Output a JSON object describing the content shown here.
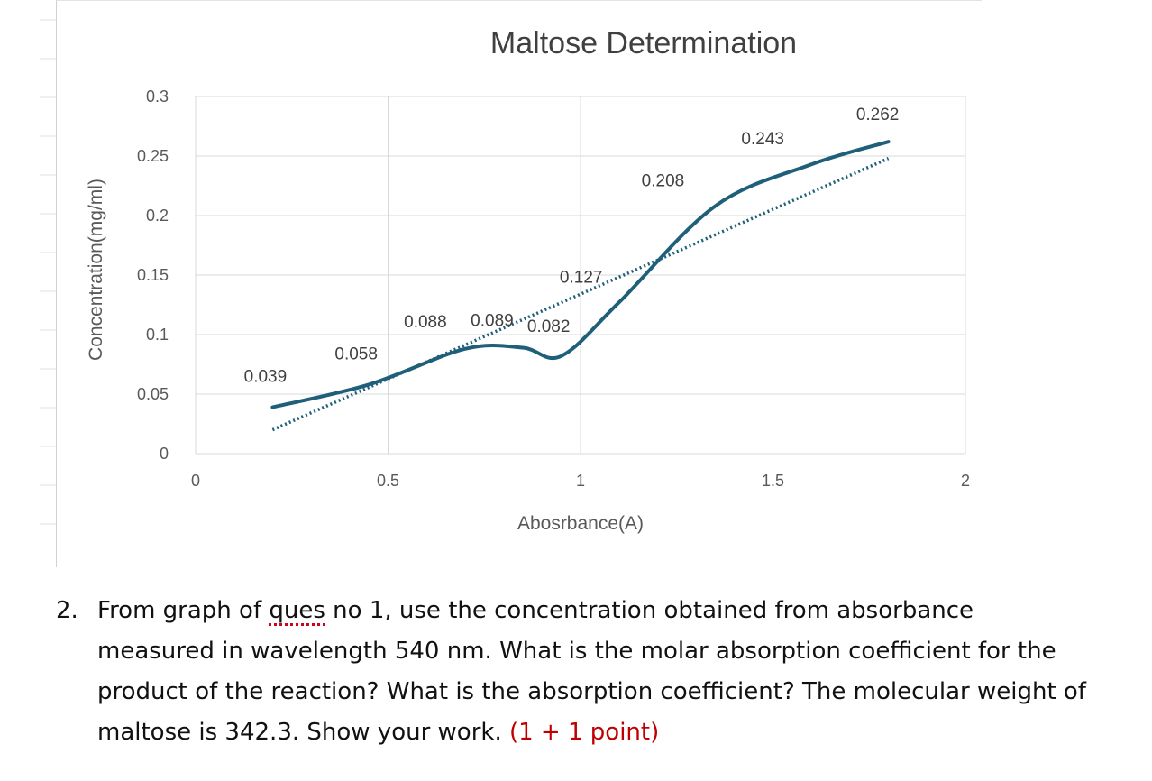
{
  "chart_data": {
    "type": "line",
    "title": "Maltose Determination",
    "xlabel": "Abosrbance(A)",
    "ylabel": "Concentration(mg/ml)",
    "xlim": [
      0,
      2
    ],
    "ylim": [
      0,
      0.3
    ],
    "x_ticks": [
      0,
      0.5,
      1,
      1.5,
      2
    ],
    "x_tick_labels": [
      "0",
      "0.5",
      "1",
      "1.5",
      "2"
    ],
    "y_ticks": [
      0,
      0.05,
      0.1,
      0.15,
      0.2,
      0.25,
      0.3
    ],
    "y_tick_labels": [
      "0",
      "0.05",
      "0.1",
      "0.15",
      "0.2",
      "0.25",
      "0.3"
    ],
    "grid": true,
    "legend": "none",
    "series": [
      {
        "style": "smoothed-line",
        "color": "#1f5f7a",
        "x": [
          0.2,
          0.45,
          0.7,
          0.85,
          0.95,
          1.1,
          1.35,
          1.6,
          1.8
        ],
        "y": [
          0.039,
          0.058,
          0.088,
          0.089,
          0.082,
          0.127,
          0.208,
          0.243,
          0.262
        ],
        "labels": [
          "0.039",
          "0.058",
          "0.088",
          "0.089",
          "0.082",
          "0.127",
          "0.208",
          "0.243",
          "0.262"
        ]
      },
      {
        "style": "dotted-trendline",
        "color": "#1f5f7a",
        "x": [
          0.2,
          1.8
        ],
        "y": [
          0.02,
          0.248
        ]
      }
    ]
  },
  "question": {
    "number": "2.",
    "text_before": "From graph of ",
    "misspelled_word": "ques",
    "text_after": " no 1, use the concentration obtained from absorbance measured in wavelength 540 nm. What is the molar absorption coefficient for the product of the reaction? What is the absorption coefficient? The molecular weight of maltose is 342.3. Show your work. ",
    "points": "(1 + 1 point)"
  }
}
